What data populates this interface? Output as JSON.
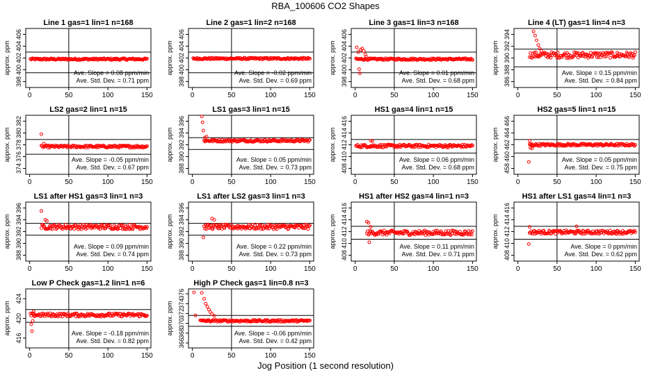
{
  "figure": {
    "title": "RBA_100606  CO2 Shapes",
    "xlabel": "Jog Position (1 second resolution)"
  },
  "colors": {
    "points": "#ff0000",
    "axes": "#000000"
  },
  "chart_data": [
    {
      "type": "scatter",
      "title": "Line 1 gas=1 lin=1 n=168",
      "ylabel": "approx. ppm",
      "xticks": [
        0,
        50,
        100,
        150
      ],
      "xlim": [
        -5,
        155
      ],
      "yticks": [
        398,
        400,
        402,
        404,
        406
      ],
      "ylim": [
        397,
        407
      ],
      "hline_upper": 403,
      "hline_lower": 399.5,
      "vline": 50,
      "slope_label": "Ave. Slope =  0.08  ppm/min",
      "std_label": "Ave. Std. Dev. =  0.71  ppm",
      "series": [
        {
          "x": [
            1,
            150
          ],
          "y": [
            401.8,
            401.8
          ],
          "noise": 0.15,
          "peaks": []
        }
      ]
    },
    {
      "type": "scatter",
      "title": "Line 2 gas=1 lin=2 n=168",
      "ylabel": "approx. ppm",
      "xticks": [
        0,
        50,
        100,
        150
      ],
      "xlim": [
        -5,
        155
      ],
      "yticks": [
        398,
        400,
        402,
        404,
        406
      ],
      "ylim": [
        397,
        407
      ],
      "hline_upper": 403,
      "hline_lower": 399.5,
      "vline": 50,
      "slope_label": "Ave. Slope =  -0.02  ppm/min",
      "std_label": "Ave. Std. Dev. =  0.69  ppm",
      "series": [
        {
          "x": [
            1,
            150
          ],
          "y": [
            401.9,
            401.9
          ],
          "noise": 0.15,
          "peaks": []
        }
      ]
    },
    {
      "type": "scatter",
      "title": "Line 3 gas=1 lin=3 n=168",
      "ylabel": "approx. ppm",
      "xticks": [
        0,
        50,
        100,
        150
      ],
      "xlim": [
        -5,
        155
      ],
      "yticks": [
        398,
        400,
        402,
        404,
        406
      ],
      "ylim": [
        397,
        407
      ],
      "hline_upper": 403,
      "hline_lower": 399.5,
      "vline": 50,
      "slope_label": "Ave. Slope =  0.01  ppm/min",
      "std_label": "Ave. Std. Dev. =  0.68  ppm",
      "series": [
        {
          "x": [
            1,
            150
          ],
          "y": [
            401.8,
            401.8
          ],
          "noise": 0.15,
          "peaks": [
            [
              2,
              403.8
            ],
            [
              4,
              403.0
            ],
            [
              5,
              400.1
            ],
            [
              6,
              399.4
            ],
            [
              7,
              403.4
            ],
            [
              9,
              403.6
            ],
            [
              11,
              403.2
            ],
            [
              13,
              402.6
            ],
            [
              14,
              402.2
            ]
          ]
        }
      ]
    },
    {
      "type": "scatter",
      "title": "Line 4 (LT) gas=1 lin=4 n=3",
      "ylabel": "approx. ppm",
      "xticks": [
        0,
        50,
        100,
        150
      ],
      "xlim": [
        -5,
        155
      ],
      "yticks": [
        386,
        388,
        390,
        392,
        394
      ],
      "ylim": [
        385,
        395
      ],
      "hline_upper": 391.5,
      "hline_lower": 388.5,
      "vline": 50,
      "slope_label": "Ave. Slope =  0.15  ppm/min",
      "std_label": "Ave. Std. Dev. =  0.84  ppm",
      "series": [
        {
          "x": [
            15,
            150
          ],
          "y": [
            390.5,
            390.5
          ],
          "noise": 0.5,
          "peaks": [
            [
              20,
              394.5
            ],
            [
              22,
              393.8
            ],
            [
              24,
              393.0
            ],
            [
              26,
              392.2
            ],
            [
              28,
              391.6
            ],
            [
              30,
              391.2
            ]
          ]
        }
      ]
    },
    {
      "type": "scatter",
      "title": "LS2 gas=2 lin=1 n=15",
      "ylabel": "approx. ppm",
      "xticks": [
        0,
        50,
        100,
        150
      ],
      "xlim": [
        -5,
        155
      ],
      "yticks": [
        374,
        376,
        378,
        380,
        382
      ],
      "ylim": [
        373,
        383
      ],
      "hline_upper": 378.9,
      "hline_lower": 376.4,
      "vline": 50,
      "slope_label": "Ave. Slope =  -0.05  ppm/min",
      "std_label": "Ave. Std. Dev. =  0.67  ppm",
      "series": [
        {
          "x": [
            15,
            150
          ],
          "y": [
            377.7,
            377.7
          ],
          "noise": 0.2,
          "peaks": [
            [
              15,
              379.8
            ],
            [
              18,
              378.2
            ]
          ]
        }
      ]
    },
    {
      "type": "scatter",
      "title": "LS1 gas=3 lin=1 n=15",
      "ylabel": "approx. ppm",
      "xticks": [
        0,
        50,
        100,
        150
      ],
      "xlim": [
        -5,
        155
      ],
      "yticks": [
        388,
        390,
        392,
        394,
        396
      ],
      "ylim": [
        387,
        397
      ],
      "hline_upper": 393.2,
      "hline_lower": 391.2,
      "vline": 50,
      "slope_label": "Ave. Slope =  0.05  ppm/min",
      "std_label": "Ave. Std. Dev. =  0.73  ppm",
      "series": [
        {
          "x": [
            15,
            150
          ],
          "y": [
            392.7,
            392.7
          ],
          "noise": 0.2,
          "peaks": [
            [
              12,
              396.8
            ],
            [
              13,
              395.8
            ],
            [
              14,
              394.4
            ],
            [
              16,
              393.2
            ],
            [
              18,
              393.4
            ]
          ]
        }
      ]
    },
    {
      "type": "scatter",
      "title": "HS1 gas=4 lin=1 n=15",
      "ylabel": "approx. ppm",
      "xticks": [
        0,
        50,
        100,
        150
      ],
      "xlim": [
        -5,
        155
      ],
      "yticks": [
        408,
        410,
        412,
        414,
        416
      ],
      "ylim": [
        407,
        417
      ],
      "hline_upper": 412.9,
      "hline_lower": 410.6,
      "vline": 50,
      "slope_label": "Ave. Slope =  0.06  ppm/min",
      "std_label": "Ave. Std. Dev. =  0.68  ppm",
      "series": [
        {
          "x": [
            1,
            150
          ],
          "y": [
            411.8,
            411.8
          ],
          "noise": 0.25,
          "peaks": [
            [
              20,
              412.7
            ],
            [
              22,
              412.6
            ]
          ]
        }
      ]
    },
    {
      "type": "scatter",
      "title": "HS2 gas=5 lin=1 n=15",
      "ylabel": "approx. ppm",
      "xticks": [
        0,
        50,
        100,
        150
      ],
      "xlim": [
        -5,
        155
      ],
      "yticks": [
        458,
        460,
        462,
        464,
        466
      ],
      "ylim": [
        457,
        467
      ],
      "hline_upper": 462.9,
      "hline_lower": 460.6,
      "vline": 50,
      "slope_label": "Ave. Slope =  0.05  ppm/min",
      "std_label": "Ave. Std. Dev. =  0.75  ppm",
      "series": [
        {
          "x": [
            15,
            150
          ],
          "y": [
            462,
            462
          ],
          "noise": 0.2,
          "peaks": [
            [
              14,
              459.1
            ],
            [
              15,
              462.7
            ],
            [
              16,
              461.5
            ],
            [
              18,
              461.4
            ]
          ]
        }
      ]
    },
    {
      "type": "scatter",
      "title": "LS1 after HS1 gas=3 lin=1 n=3",
      "ylabel": "approx. ppm",
      "xticks": [
        0,
        50,
        100,
        150
      ],
      "xlim": [
        -5,
        155
      ],
      "yticks": [
        388,
        390,
        392,
        394,
        396
      ],
      "ylim": [
        387,
        397
      ],
      "hline_upper": 393.4,
      "hline_lower": 391.4,
      "vline": 50,
      "slope_label": "Ave. Slope =  0.09  ppm/min",
      "std_label": "Ave. Std. Dev. =  0.74  ppm",
      "series": [
        {
          "x": [
            15,
            150
          ],
          "y": [
            392.8,
            392.8
          ],
          "noise": 0.4,
          "peaks": [
            [
              15,
              395.5
            ],
            [
              20,
              394.0
            ],
            [
              22,
              393.8
            ]
          ]
        }
      ]
    },
    {
      "type": "scatter",
      "title": "LS1 after LS2 gas=3 lin=1 n=3",
      "ylabel": "approx. ppm",
      "xticks": [
        0,
        50,
        100,
        150
      ],
      "xlim": [
        -5,
        155
      ],
      "yticks": [
        388,
        390,
        392,
        394,
        396
      ],
      "ylim": [
        387,
        397
      ],
      "hline_upper": 393.4,
      "hline_lower": 391.4,
      "vline": 50,
      "slope_label": "Ave. Slope =  0.22  ppm/min",
      "std_label": "Ave. Std. Dev. =  0.73  ppm",
      "series": [
        {
          "x": [
            15,
            150
          ],
          "y": [
            392.8,
            392.8
          ],
          "noise": 0.4,
          "peaks": [
            [
              14,
              391.0
            ],
            [
              25,
              394.2
            ],
            [
              28,
              394.0
            ]
          ]
        }
      ]
    },
    {
      "type": "scatter",
      "title": "HS1 after HS2 gas=4 lin=1 n=3",
      "ylabel": "approx. ppm",
      "xticks": [
        0,
        50,
        100,
        150
      ],
      "xlim": [
        -5,
        155
      ],
      "yticks": [
        408,
        410,
        412,
        414,
        416
      ],
      "ylim": [
        407,
        417
      ],
      "hline_upper": 412.9,
      "hline_lower": 410.7,
      "vline": 50,
      "slope_label": "Ave. Slope =  0.11  ppm/min",
      "std_label": "Ave. Std. Dev. =  0.71  ppm",
      "series": [
        {
          "x": [
            15,
            150
          ],
          "y": [
            411.8,
            411.8
          ],
          "noise": 0.4,
          "peaks": [
            [
              15,
              413.7
            ],
            [
              17,
              413.5
            ],
            [
              18,
              410.2
            ],
            [
              20,
              412.8
            ]
          ]
        }
      ]
    },
    {
      "type": "scatter",
      "title": "HS1 after LS1 gas=4 lin=1 n=3",
      "ylabel": "approx. ppm",
      "xticks": [
        0,
        50,
        100,
        150
      ],
      "xlim": [
        -5,
        155
      ],
      "yticks": [
        408,
        410,
        412,
        414,
        416
      ],
      "ylim": [
        407,
        417
      ],
      "hline_upper": 412.9,
      "hline_lower": 410.7,
      "vline": 50,
      "slope_label": "Ave. Slope =  0  ppm/min",
      "std_label": "Ave. Std. Dev. =  0.62  ppm",
      "series": [
        {
          "x": [
            15,
            150
          ],
          "y": [
            411.9,
            411.9
          ],
          "noise": 0.3,
          "peaks": [
            [
              14,
              409.9
            ],
            [
              15,
              412.8
            ],
            [
              75,
              412.9
            ]
          ]
        }
      ]
    },
    {
      "type": "scatter",
      "title": "Low P Check gas=1.2 lin=1 n=6",
      "ylabel": "approx. ppm",
      "xticks": [
        0,
        50,
        100,
        150
      ],
      "xlim": [
        -5,
        155
      ],
      "yticks": [
        416,
        420,
        424
      ],
      "ylim": [
        414,
        426
      ],
      "hline_upper": 421.8,
      "hline_lower": 419.2,
      "vline": 50,
      "slope_label": "Ave. Slope =  -0.18  ppm/min",
      "std_label": "Ave. Std. Dev. =  0.82  ppm",
      "series": [
        {
          "x": [
            1,
            150
          ],
          "y": [
            420.7,
            420.7
          ],
          "noise": 0.35,
          "peaks": [
            [
              2,
              418.8
            ],
            [
              3,
              417.4
            ],
            [
              4,
              419.5
            ],
            [
              5,
              421.4
            ]
          ]
        }
      ]
    },
    {
      "type": "scatter",
      "title": "High P Check gas=1 lin=0.8 n=3",
      "ylabel": "approx. ppm",
      "xticks": [
        0,
        50,
        100,
        150
      ],
      "xlim": [
        -5,
        155
      ],
      "yticks": [
        366,
        368,
        370,
        372,
        374,
        376
      ],
      "ylim": [
        365,
        377
      ],
      "hline_upper": 371.6,
      "hline_lower": 369.4,
      "vline": 50,
      "slope_label": "Ave. Slope =  -0.06  ppm/min",
      "std_label": "Ave. Std. Dev. =  0.42  ppm",
      "series": [
        {
          "x": [
            10,
            150
          ],
          "y": [
            370.5,
            370.5
          ],
          "noise": 0.2,
          "peaks": [
            [
              2,
              376.3
            ],
            [
              4,
              371.6
            ],
            [
              12,
              376.2
            ],
            [
              15,
              375.0
            ],
            [
              17,
              374.0
            ],
            [
              19,
              373.4
            ],
            [
              21,
              372.8
            ],
            [
              23,
              372.3
            ],
            [
              25,
              371.9
            ],
            [
              28,
              371.5
            ]
          ]
        }
      ]
    }
  ]
}
